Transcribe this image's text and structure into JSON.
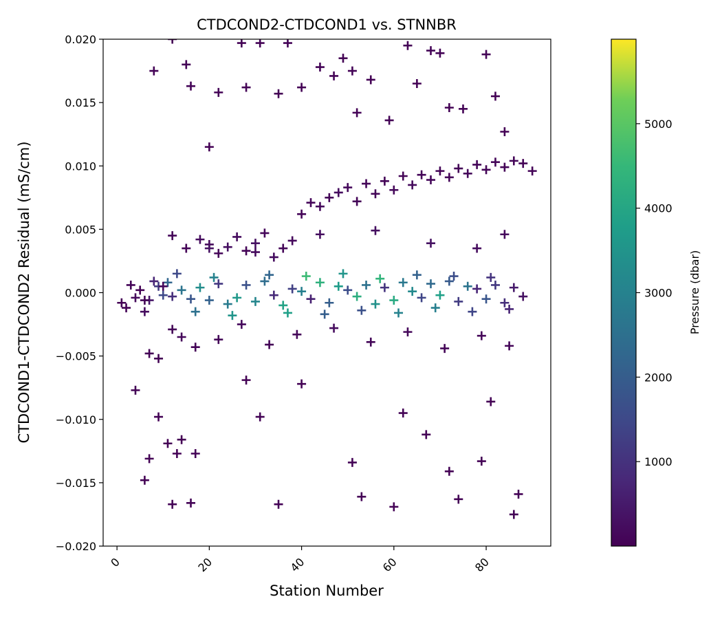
{
  "chart_data": {
    "type": "scatter",
    "title": "CTDCOND2-CTDCOND1 vs. STNNBR",
    "xlabel": "Station Number",
    "ylabel": "CTDCOND1-CTDCOND2 Residual (mS/cm)",
    "marker": "+",
    "xlim": [
      -3,
      94
    ],
    "ylim": [
      -0.02,
      0.02
    ],
    "xticks": [
      0,
      20,
      40,
      60,
      80
    ],
    "xtick_labels": [
      "0",
      "20",
      "40",
      "60",
      "80"
    ],
    "xtick_rotation": 45,
    "yticks": [
      -0.02,
      -0.015,
      -0.01,
      -0.005,
      0.0,
      0.005,
      0.01,
      0.015,
      0.02
    ],
    "ytick_labels": [
      "−0.020",
      "−0.015",
      "−0.010",
      "−0.005",
      "0.000",
      "0.005",
      "0.010",
      "0.015",
      "0.020"
    ],
    "grid": false,
    "colorbar": {
      "label": "Pressure (dbar)",
      "colormap": "viridis",
      "range": [
        0,
        6000
      ],
      "ticks": [
        1000,
        2000,
        3000,
        4000,
        5000
      ],
      "tick_labels": [
        "1000",
        "2000",
        "3000",
        "4000",
        "5000"
      ]
    },
    "points": [
      [
        1,
        -0.0008,
        20
      ],
      [
        2,
        -0.0012,
        45
      ],
      [
        3,
        0.0006,
        60
      ],
      [
        4,
        -0.0004,
        150
      ],
      [
        5,
        0.0002,
        30
      ],
      [
        6,
        -0.0015,
        200
      ],
      [
        7,
        -0.0006,
        400
      ],
      [
        8,
        0.0009,
        700
      ],
      [
        9,
        0.0005,
        1200
      ],
      [
        10,
        -0.0002,
        1500
      ],
      [
        11,
        0.0008,
        2200
      ],
      [
        12,
        -0.0003,
        900
      ],
      [
        14,
        0.0002,
        2600
      ],
      [
        16,
        -0.0005,
        1800
      ],
      [
        18,
        0.0004,
        3300
      ],
      [
        20,
        -0.0006,
        2100
      ],
      [
        22,
        0.0007,
        1100
      ],
      [
        24,
        -0.0009,
        2800
      ],
      [
        26,
        -0.0004,
        3600
      ],
      [
        28,
        0.0006,
        1700
      ],
      [
        30,
        -0.0007,
        3100
      ],
      [
        32,
        0.0009,
        2400
      ],
      [
        34,
        -0.0002,
        800
      ],
      [
        36,
        -0.001,
        3900
      ],
      [
        38,
        0.0003,
        1300
      ],
      [
        40,
        0.0001,
        2900
      ],
      [
        42,
        -0.0005,
        600
      ],
      [
        44,
        0.0008,
        4300
      ],
      [
        46,
        -0.0008,
        2000
      ],
      [
        48,
        0.0005,
        3700
      ],
      [
        50,
        0.0002,
        1600
      ],
      [
        52,
        -0.0003,
        4200
      ],
      [
        54,
        0.0006,
        2500
      ],
      [
        56,
        -0.0009,
        3400
      ],
      [
        58,
        0.0004,
        1000
      ],
      [
        60,
        -0.0006,
        4100
      ],
      [
        62,
        0.0008,
        2700
      ],
      [
        64,
        0.0001,
        3200
      ],
      [
        66,
        -0.0004,
        1400
      ],
      [
        68,
        0.0007,
        2300
      ],
      [
        70,
        -0.0002,
        3800
      ],
      [
        72,
        0.0009,
        1900
      ],
      [
        74,
        -0.0007,
        1200
      ],
      [
        76,
        0.0005,
        2600
      ],
      [
        78,
        0.0003,
        700
      ],
      [
        80,
        -0.0005,
        1800
      ],
      [
        82,
        0.0006,
        1100
      ],
      [
        84,
        -0.0008,
        900
      ],
      [
        86,
        0.0004,
        500
      ],
      [
        88,
        -0.0003,
        300
      ],
      [
        13,
        0.0015,
        1500
      ],
      [
        17,
        -0.0015,
        2500
      ],
      [
        21,
        0.0012,
        3000
      ],
      [
        25,
        -0.0018,
        3500
      ],
      [
        33,
        0.0014,
        2200
      ],
      [
        37,
        -0.0016,
        3800
      ],
      [
        41,
        0.0013,
        4600
      ],
      [
        45,
        -0.0017,
        2000
      ],
      [
        49,
        0.0015,
        3500
      ],
      [
        53,
        -0.0014,
        1700
      ],
      [
        57,
        0.0011,
        4400
      ],
      [
        61,
        -0.0016,
        3000
      ],
      [
        65,
        0.0014,
        2100
      ],
      [
        69,
        -0.0012,
        2900
      ],
      [
        73,
        0.0013,
        1600
      ],
      [
        77,
        -0.0015,
        1400
      ],
      [
        81,
        0.0012,
        1000
      ],
      [
        85,
        -0.0013,
        700
      ],
      [
        10,
        0.0005,
        120
      ],
      [
        12,
        0.0045,
        90
      ],
      [
        15,
        0.0035,
        60
      ],
      [
        18,
        0.0042,
        200
      ],
      [
        20,
        0.0038,
        150
      ],
      [
        22,
        0.0031,
        80
      ],
      [
        24,
        0.0036,
        250
      ],
      [
        26,
        0.0044,
        180
      ],
      [
        28,
        0.0033,
        50
      ],
      [
        30,
        0.0039,
        300
      ],
      [
        32,
        0.0047,
        120
      ],
      [
        34,
        0.0028,
        220
      ],
      [
        36,
        0.0035,
        90
      ],
      [
        38,
        0.0041,
        160
      ],
      [
        40,
        0.0062,
        60
      ],
      [
        42,
        0.0071,
        100
      ],
      [
        44,
        0.0068,
        140
      ],
      [
        46,
        0.0075,
        80
      ],
      [
        48,
        0.0079,
        200
      ],
      [
        50,
        0.0083,
        150
      ],
      [
        52,
        0.0072,
        70
      ],
      [
        54,
        0.0086,
        110
      ],
      [
        56,
        0.0078,
        90
      ],
      [
        58,
        0.0088,
        60
      ],
      [
        60,
        0.0081,
        130
      ],
      [
        62,
        0.0092,
        50
      ],
      [
        64,
        0.0085,
        170
      ],
      [
        66,
        0.0093,
        80
      ],
      [
        68,
        0.0089,
        120
      ],
      [
        70,
        0.0096,
        60
      ],
      [
        72,
        0.0091,
        100
      ],
      [
        74,
        0.0098,
        70
      ],
      [
        76,
        0.0094,
        150
      ],
      [
        78,
        0.0101,
        80
      ],
      [
        80,
        0.0097,
        60
      ],
      [
        82,
        0.0103,
        110
      ],
      [
        84,
        0.0099,
        70
      ],
      [
        86,
        0.0104,
        90
      ],
      [
        88,
        0.0102,
        50
      ],
      [
        90,
        0.0096,
        60
      ],
      [
        20,
        0.0035,
        300
      ],
      [
        30,
        0.0032,
        180
      ],
      [
        44,
        0.0046,
        220
      ],
      [
        56,
        0.0049,
        260
      ],
      [
        68,
        0.0039,
        300
      ],
      [
        78,
        0.0035,
        200
      ],
      [
        84,
        0.0046,
        160
      ],
      [
        6,
        -0.0006,
        60
      ],
      [
        7,
        -0.0048,
        40
      ],
      [
        9,
        -0.0052,
        30
      ],
      [
        12,
        -0.0029,
        80
      ],
      [
        14,
        -0.0035,
        120
      ],
      [
        17,
        -0.0043,
        60
      ],
      [
        22,
        -0.0037,
        90
      ],
      [
        27,
        -0.0025,
        140
      ],
      [
        33,
        -0.0041,
        70
      ],
      [
        39,
        -0.0033,
        110
      ],
      [
        47,
        -0.0028,
        200
      ],
      [
        55,
        -0.0039,
        90
      ],
      [
        63,
        -0.0031,
        130
      ],
      [
        71,
        -0.0044,
        70
      ],
      [
        79,
        -0.0034,
        110
      ],
      [
        85,
        -0.0042,
        80
      ],
      [
        8,
        0.0175,
        40
      ],
      [
        12,
        0.02,
        30
      ],
      [
        15,
        0.018,
        50
      ],
      [
        16,
        0.0163,
        60
      ],
      [
        20,
        0.0115,
        20
      ],
      [
        22,
        0.0158,
        40
      ],
      [
        27,
        0.0197,
        30
      ],
      [
        28,
        0.0162,
        50
      ],
      [
        31,
        0.0197,
        40
      ],
      [
        35,
        0.0157,
        30
      ],
      [
        37,
        0.0197,
        60
      ],
      [
        40,
        0.0162,
        20
      ],
      [
        44,
        0.0178,
        40
      ],
      [
        47,
        0.0171,
        50
      ],
      [
        49,
        0.0185,
        30
      ],
      [
        51,
        0.0175,
        60
      ],
      [
        52,
        0.0142,
        40
      ],
      [
        55,
        0.0168,
        30
      ],
      [
        59,
        0.0136,
        50
      ],
      [
        63,
        0.0195,
        40
      ],
      [
        65,
        0.0165,
        30
      ],
      [
        68,
        0.0191,
        60
      ],
      [
        70,
        0.0189,
        40
      ],
      [
        72,
        0.0146,
        30
      ],
      [
        75,
        0.0145,
        50
      ],
      [
        80,
        0.0188,
        40
      ],
      [
        82,
        0.0155,
        30
      ],
      [
        84,
        0.0127,
        20
      ],
      [
        4,
        -0.0077,
        40
      ],
      [
        6,
        -0.0148,
        30
      ],
      [
        7,
        -0.0131,
        50
      ],
      [
        9,
        -0.0098,
        40
      ],
      [
        11,
        -0.0119,
        30
      ],
      [
        12,
        -0.0167,
        50
      ],
      [
        13,
        -0.0127,
        40
      ],
      [
        14,
        -0.0116,
        30
      ],
      [
        16,
        -0.0166,
        50
      ],
      [
        17,
        -0.0127,
        40
      ],
      [
        28,
        -0.0069,
        30
      ],
      [
        31,
        -0.0098,
        50
      ],
      [
        35,
        -0.0167,
        40
      ],
      [
        40,
        -0.0072,
        30
      ],
      [
        51,
        -0.0134,
        50
      ],
      [
        53,
        -0.0161,
        40
      ],
      [
        60,
        -0.0169,
        30
      ],
      [
        62,
        -0.0095,
        50
      ],
      [
        67,
        -0.0112,
        40
      ],
      [
        72,
        -0.0141,
        30
      ],
      [
        74,
        -0.0163,
        50
      ],
      [
        79,
        -0.0133,
        40
      ],
      [
        81,
        -0.0086,
        30
      ],
      [
        86,
        -0.0175,
        50
      ],
      [
        87,
        -0.0159,
        40
      ]
    ]
  }
}
